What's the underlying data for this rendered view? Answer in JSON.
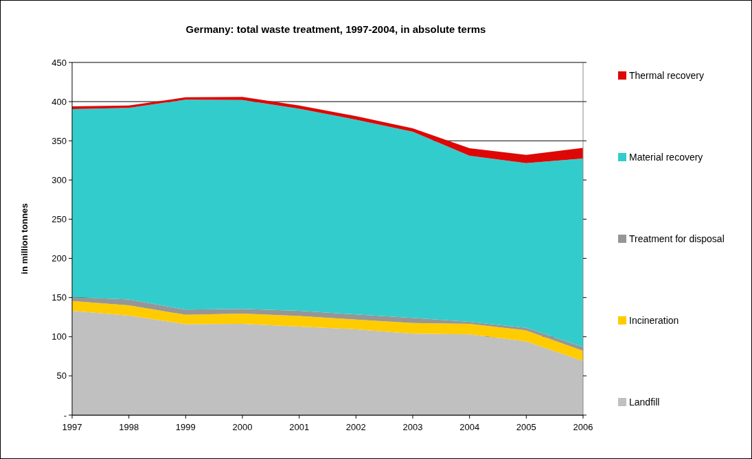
{
  "chart_data": {
    "type": "area",
    "stacked": true,
    "title": "Germany: total waste treatment, 1997-2004, in absolute terms",
    "ylabel": "in million tonnes",
    "categories": [
      "1997",
      "1998",
      "1999",
      "2000",
      "2001",
      "2002",
      "2003",
      "2004",
      "2005",
      "2006"
    ],
    "series": [
      {
        "name": "Landfill",
        "color": "#c0c0c0",
        "values": [
          133,
          127,
          116,
          116.5,
          113,
          109.5,
          104,
          103,
          94,
          69
        ]
      },
      {
        "name": "Incineration",
        "color": "#ffcc00",
        "values": [
          12.5,
          13,
          12,
          13,
          13.5,
          12.5,
          13.5,
          13.5,
          14,
          13
        ]
      },
      {
        "name": "Treatment for disposal",
        "color": "#969696",
        "values": [
          5,
          7.5,
          6.5,
          6,
          6.5,
          6.5,
          6.5,
          2.5,
          3.5,
          5
        ]
      },
      {
        "name": "Material recovery",
        "color": "#33cccc",
        "values": [
          240,
          244.5,
          268,
          266.5,
          258,
          248.5,
          237.5,
          212,
          210,
          240.5
        ]
      },
      {
        "name": "Thermal recovery",
        "color": "#dd0806",
        "values": [
          3.5,
          3,
          3,
          4,
          4,
          4.5,
          4.5,
          9.5,
          10.5,
          13.5
        ]
      }
    ],
    "ylim": [
      0,
      450
    ],
    "yticks": [
      {
        "value": 0,
        "label": "-"
      },
      50,
      100,
      150,
      200,
      250,
      300,
      350,
      400,
      450
    ],
    "grid": "y",
    "legend": "right"
  }
}
